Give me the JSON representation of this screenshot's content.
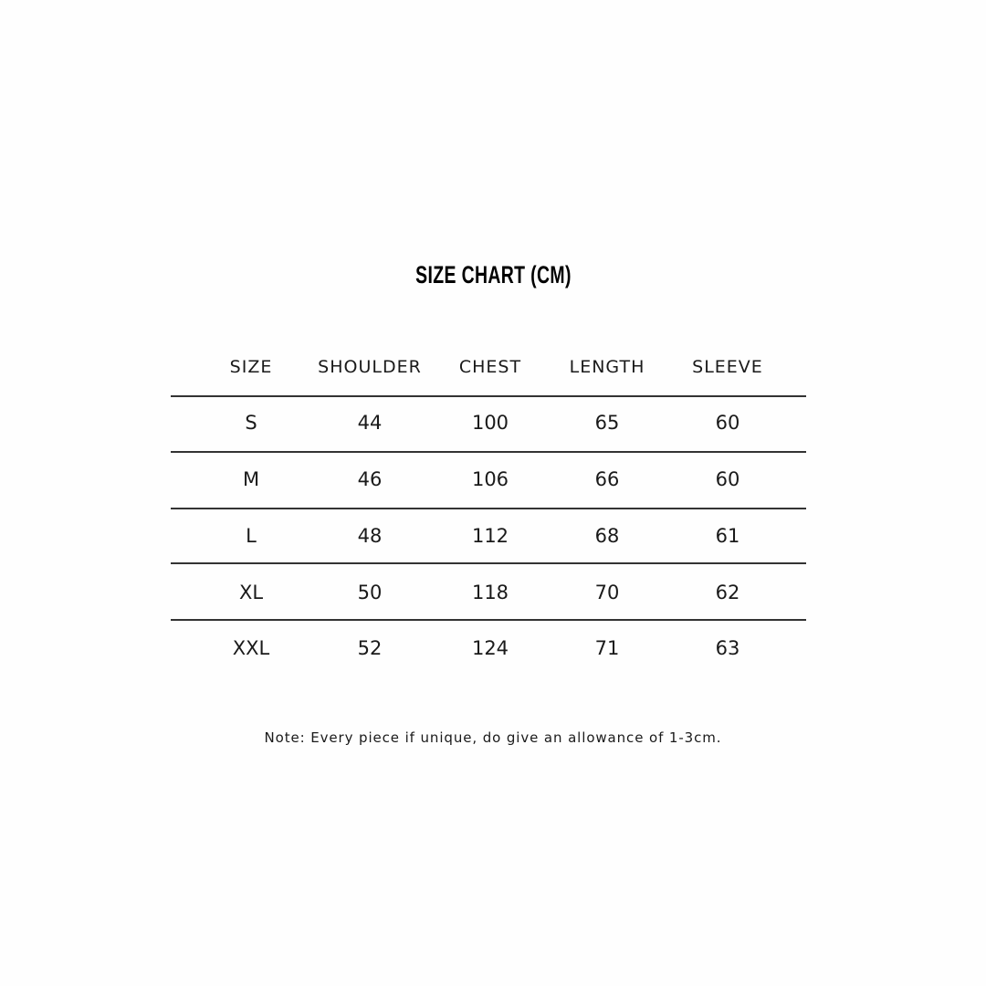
{
  "title": "SIZE CHART (CM)",
  "table": {
    "headers": [
      "SIZE",
      "SHOULDER",
      "CHEST",
      "LENGTH",
      "SLEEVE"
    ],
    "rows": [
      [
        "S",
        "44",
        "100",
        "65",
        "60"
      ],
      [
        "M",
        "46",
        "106",
        "66",
        "60"
      ],
      [
        "L",
        "48",
        "112",
        "68",
        "61"
      ],
      [
        "XL",
        "50",
        "118",
        "70",
        "62"
      ],
      [
        "XXL",
        "52",
        "124",
        "71",
        "63"
      ]
    ]
  },
  "note": "Note: Every piece if unique, do give an allowance of 1-3cm."
}
